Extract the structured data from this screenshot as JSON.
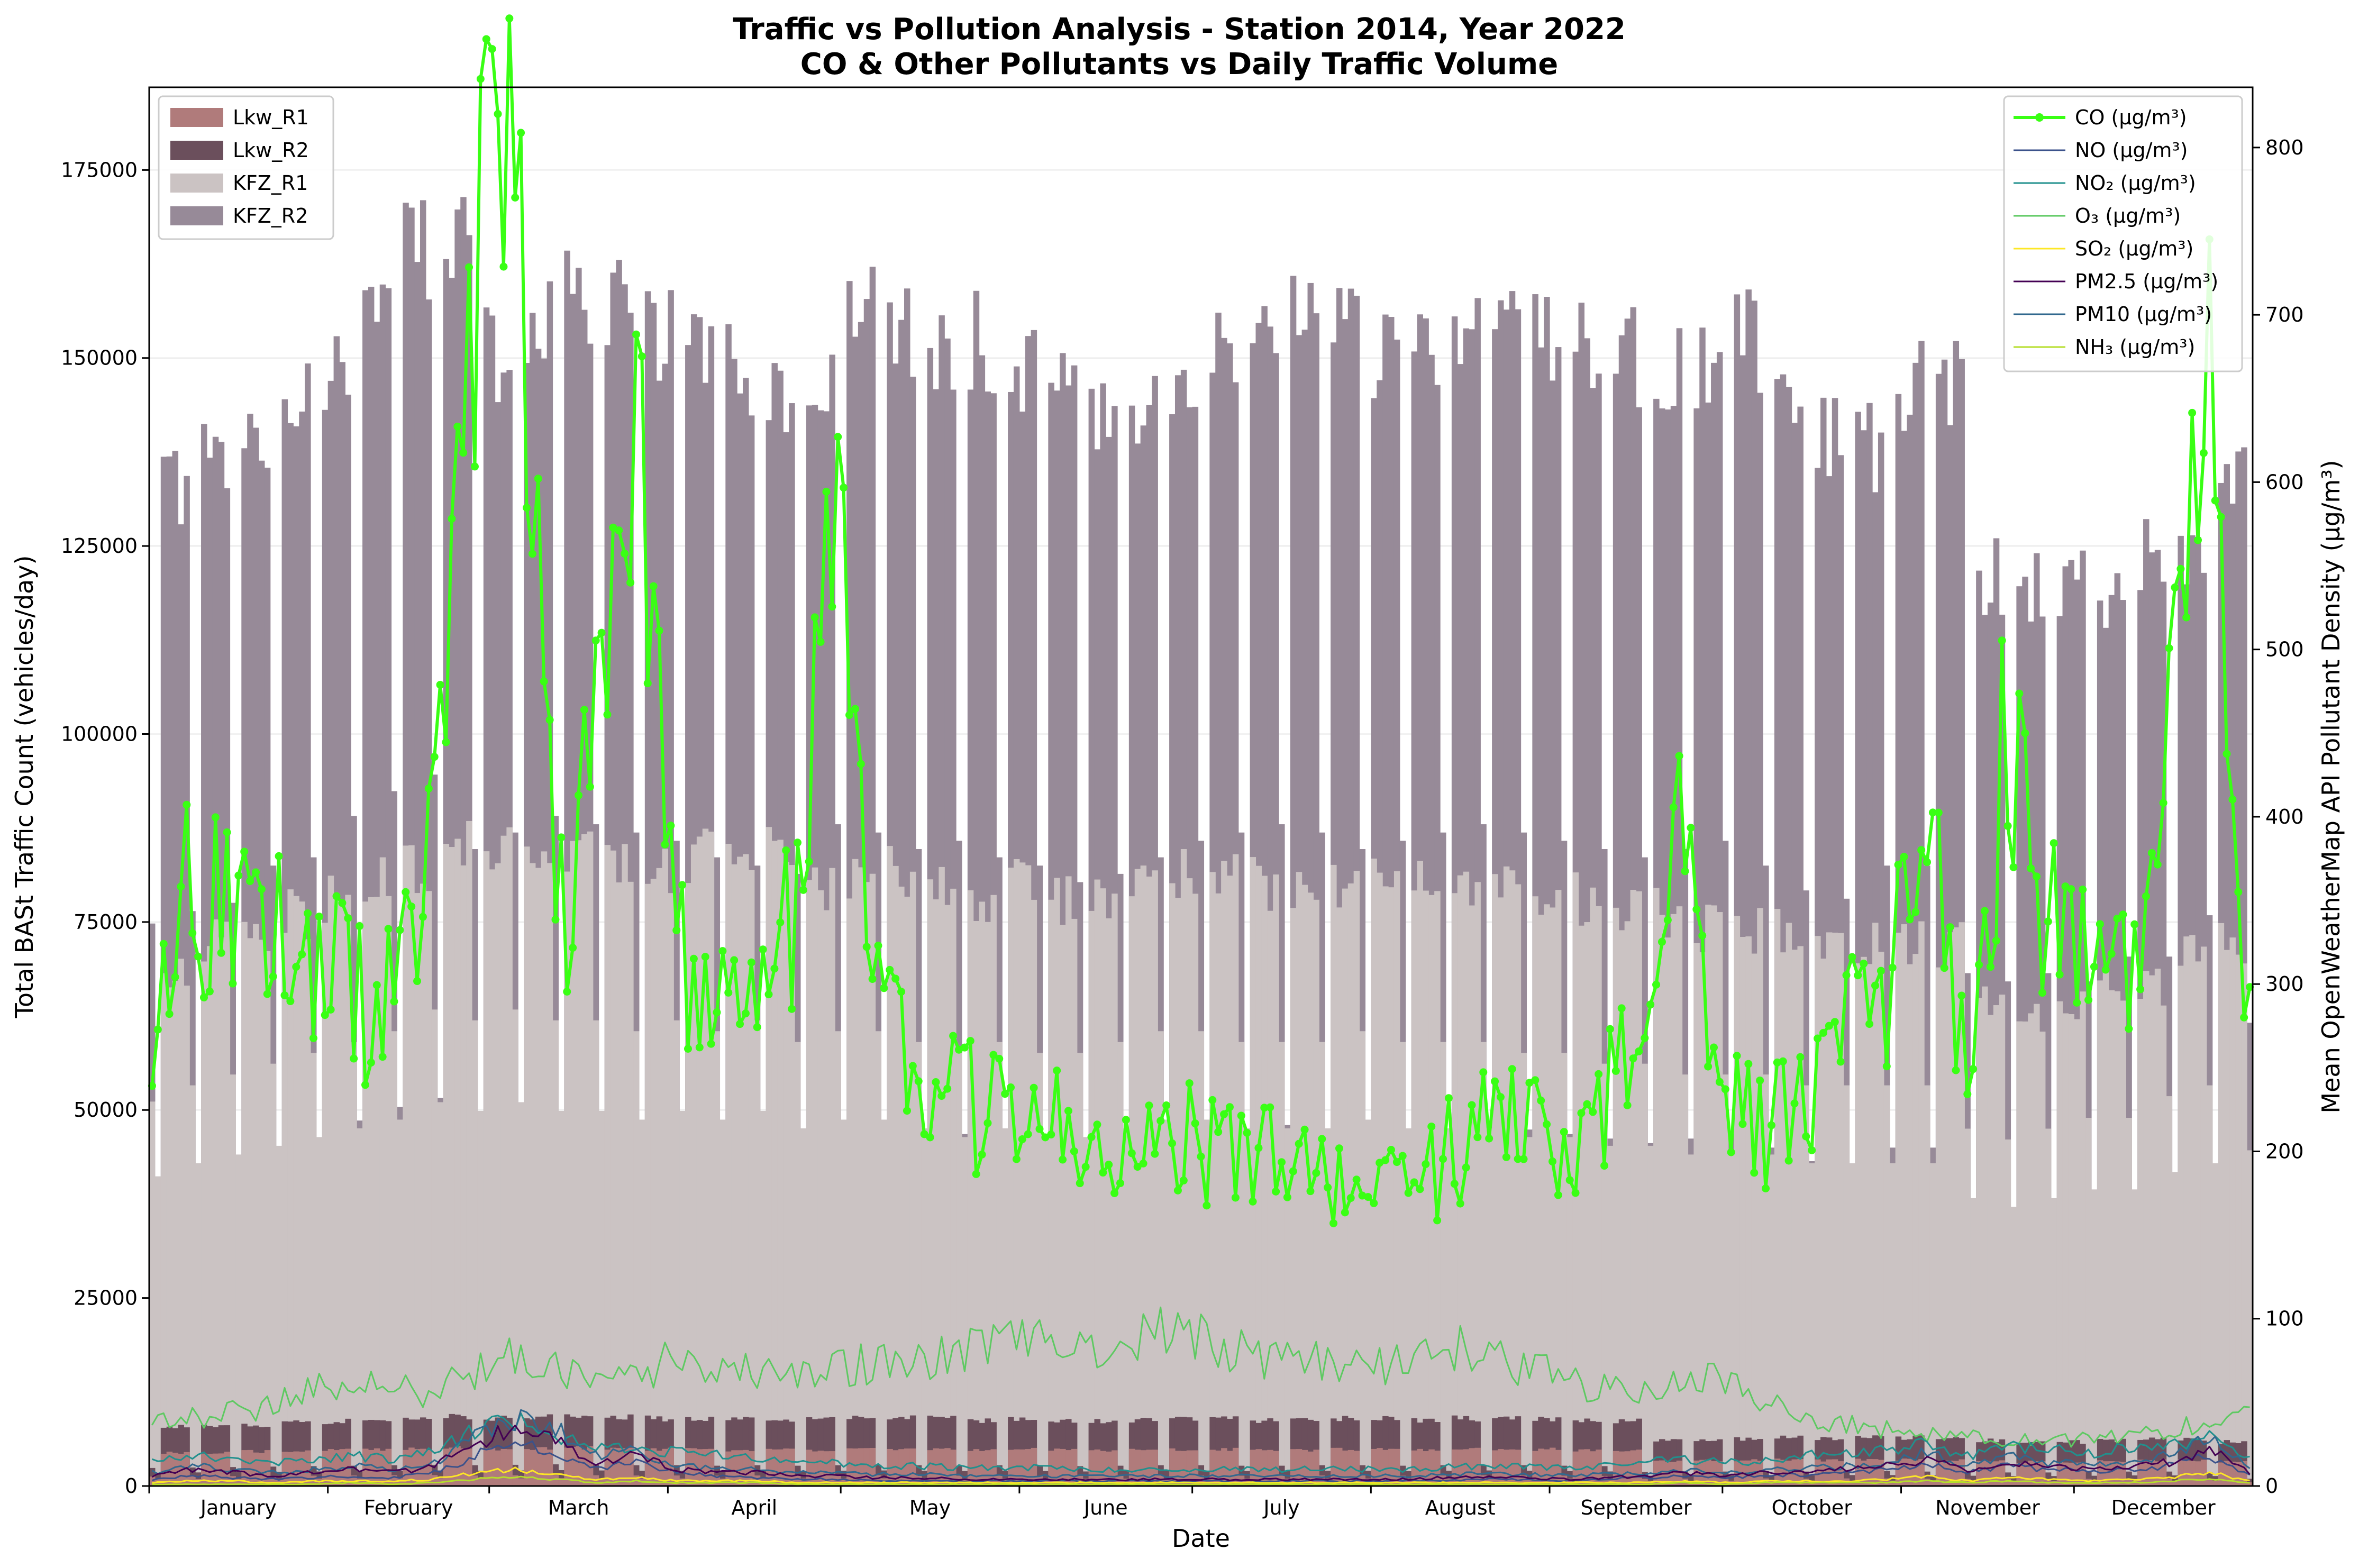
{
  "chart_data": {
    "type": "bar+line",
    "title": "Traffic vs Pollution Analysis - Station 2014, Year 2022",
    "subtitle": "CO & Other Pollutants vs Daily Traffic Volume",
    "xlabel": "Date",
    "ylabel_left": "Total BASt Traffic Count (vehicles/day)",
    "ylabel_right": "Mean OpenWeatherMap API Pollutant Density (μg/m³)",
    "ylim_left": [
      0,
      186000
    ],
    "ylim_right": [
      0,
      836
    ],
    "yticks_left": [
      "0",
      "25000",
      "50000",
      "75000",
      "100000",
      "125000",
      "150000",
      "175000"
    ],
    "yticks_right": [
      "0",
      "100",
      "200",
      "300",
      "400",
      "500",
      "600",
      "700",
      "800"
    ],
    "months": [
      "January",
      "February",
      "March",
      "April",
      "May",
      "June",
      "July",
      "August",
      "September",
      "October",
      "November",
      "December"
    ],
    "month_days": [
      31,
      28,
      31,
      30,
      31,
      30,
      31,
      31,
      30,
      31,
      30,
      31
    ],
    "grid": "horizontal",
    "legend_traffic_position": "top-left",
    "legend_pollutant_position": "top-right",
    "traffic_series": [
      {
        "name": "Lkw_R1",
        "color": "#b07b7b"
      },
      {
        "name": "Lkw_R2",
        "color": "#6b4f5c"
      },
      {
        "name": "KFZ_R1",
        "color": "#cbc3c3"
      },
      {
        "name": "KFZ_R2",
        "color": "#978a98"
      }
    ],
    "weekly_pattern_note": "",
    "traffic_weekly_means": {
      "KFZ_R2_weekday": [
        136000,
        139000,
        141000,
        150000,
        152000,
        162000,
        168000,
        172000,
        154000,
        158000,
        162000,
        160000,
        158000,
        156000,
        152000,
        150000,
        148000,
        160000,
        158000,
        154000,
        156000,
        152000,
        150000,
        146000,
        148000,
        152000,
        156000,
        158000,
        160000,
        158000,
        154000,
        156000,
        158000,
        160000,
        158000,
        156000,
        154000,
        152000,
        154000,
        156000,
        150000,
        144000,
        142000,
        150000,
        150000,
        124000,
        122000,
        124000,
        122000,
        128000,
        128000,
        138000,
        112000
      ],
      "KFZ_R1_weekday": [
        71000,
        74000,
        76000,
        78000,
        80000,
        82000,
        84000,
        88000,
        86000,
        88000,
        86000,
        86000,
        84000,
        86000,
        84000,
        86000,
        82000,
        84000,
        84000,
        82000,
        80000,
        82000,
        80000,
        80000,
        82000,
        84000,
        84000,
        82000,
        82000,
        82000,
        84000,
        82000,
        82000,
        82000,
        80000,
        80000,
        78000,
        78000,
        76000,
        76000,
        76000,
        74000,
        74000,
        74000,
        74000,
        66000,
        64000,
        66000,
        68000,
        68000,
        72000,
        74000,
        62000
      ],
      "Lkw_R2_weekday": [
        8000,
        8200,
        8400,
        8600,
        8800,
        9000,
        9200,
        9400,
        9200,
        9400,
        9600,
        9400,
        9200,
        9200,
        9000,
        9200,
        9000,
        9200,
        9400,
        9200,
        9000,
        9200,
        9000,
        8800,
        9000,
        9200,
        9200,
        9000,
        9000,
        9200,
        9200,
        9000,
        9200,
        9400,
        9200,
        9000,
        8800,
        6200,
        6400,
        6400,
        6600,
        6400,
        6600,
        6600,
        6400,
        6200,
        6000,
        6000,
        6200,
        6400,
        6400,
        6000,
        3200
      ],
      "Lkw_R1_weekday": [
        4500,
        4600,
        4700,
        4800,
        4900,
        5000,
        5100,
        5200,
        5000,
        5100,
        5200,
        5100,
        5000,
        5000,
        4900,
        5000,
        4900,
        5000,
        5100,
        5000,
        4900,
        5000,
        4900,
        4800,
        4900,
        5000,
        5000,
        4900,
        4900,
        5000,
        5000,
        4900,
        5000,
        5100,
        5000,
        4900,
        4800,
        3400,
        3500,
        3500,
        3600,
        3500,
        3600,
        3600,
        3500,
        3400,
        3300,
        3300,
        3400,
        3500,
        3500,
        3300,
        1800
      ]
    },
    "pollutants": [
      {
        "name": "CO (μg/m³)",
        "color": "#39ff14",
        "markers": true,
        "weekly_values": [
          270,
          360,
          330,
          330,
          320,
          290,
          290,
          380,
          720,
          800,
          330,
          430,
          680,
          330,
          270,
          300,
          340,
          580,
          310,
          250,
          230,
          220,
          230,
          220,
          210,
          205,
          205,
          200,
          190,
          180,
          165,
          180,
          195,
          210,
          220,
          205,
          230,
          270,
          390,
          230,
          210,
          240,
          270,
          290,
          430,
          240,
          460,
          340,
          300,
          300,
          470,
          660,
          260,
          235
        ]
      },
      {
        "name": "NO (μg/m³)",
        "color": "#3b528b",
        "markers": false,
        "weekly_values": [
          4,
          6,
          5,
          4,
          5,
          6,
          5,
          8,
          18,
          26,
          20,
          10,
          14,
          8,
          6,
          5,
          4,
          4,
          3,
          3,
          3,
          3,
          3,
          3,
          3,
          3,
          3,
          3,
          3,
          3,
          3,
          3,
          3,
          4,
          4,
          3,
          4,
          5,
          6,
          5,
          6,
          7,
          8,
          10,
          14,
          8,
          12,
          10,
          9,
          10,
          12,
          18,
          6,
          4
        ]
      },
      {
        "name": "NO₂ (μg/m³)",
        "color": "#21908d",
        "markers": false,
        "weekly_values": [
          14,
          18,
          16,
          14,
          16,
          18,
          16,
          20,
          34,
          40,
          30,
          22,
          24,
          20,
          18,
          16,
          14,
          14,
          12,
          12,
          11,
          11,
          11,
          10,
          10,
          10,
          10,
          10,
          10,
          10,
          10,
          10,
          11,
          12,
          12,
          11,
          12,
          14,
          16,
          14,
          16,
          18,
          20,
          22,
          26,
          18,
          24,
          22,
          20,
          22,
          24,
          30,
          16,
          14
        ]
      },
      {
        "name": "O₃ (μg/m³)",
        "color": "#5ec962",
        "markers": false,
        "weekly_values": [
          36,
          40,
          44,
          50,
          58,
          62,
          58,
          56,
          70,
          80,
          72,
          60,
          64,
          78,
          72,
          70,
          66,
          72,
          74,
          72,
          80,
          84,
          86,
          80,
          82,
          92,
          88,
          80,
          76,
          74,
          70,
          76,
          84,
          78,
          72,
          64,
          58,
          60,
          66,
          62,
          50,
          40,
          36,
          34,
          32,
          30,
          28,
          26,
          28,
          32,
          34,
          38,
          44,
          50
        ]
      },
      {
        "name": "SO₂ (μg/m³)",
        "color": "#fde725",
        "markers": false,
        "weekly_values": [
          2,
          3,
          3,
          2,
          3,
          3,
          3,
          4,
          8,
          10,
          7,
          4,
          5,
          3,
          3,
          3,
          2,
          2,
          2,
          2,
          2,
          2,
          2,
          2,
          2,
          2,
          2,
          2,
          2,
          2,
          2,
          2,
          2,
          2,
          2,
          2,
          2,
          2,
          3,
          2,
          3,
          3,
          3,
          4,
          6,
          3,
          5,
          4,
          3,
          4,
          5,
          8,
          3,
          2
        ]
      },
      {
        "name": "PM2.5 (μg/m³)",
        "color": "#440154",
        "markers": false,
        "weekly_values": [
          6,
          10,
          8,
          6,
          8,
          10,
          8,
          12,
          26,
          34,
          28,
          14,
          18,
          10,
          8,
          8,
          6,
          6,
          5,
          5,
          4,
          4,
          4,
          4,
          4,
          4,
          4,
          4,
          4,
          4,
          4,
          4,
          5,
          5,
          5,
          4,
          5,
          6,
          8,
          6,
          8,
          9,
          10,
          12,
          16,
          10,
          14,
          12,
          11,
          12,
          14,
          22,
          8,
          6
        ]
      },
      {
        "name": "PM10 (μg/m³)",
        "color": "#31688e",
        "markers": false,
        "weekly_values": [
          8,
          12,
          10,
          8,
          10,
          12,
          10,
          14,
          30,
          40,
          34,
          18,
          22,
          12,
          10,
          10,
          8,
          8,
          7,
          7,
          6,
          6,
          6,
          6,
          6,
          6,
          6,
          6,
          6,
          6,
          6,
          6,
          7,
          7,
          7,
          6,
          7,
          8,
          10,
          8,
          10,
          11,
          12,
          14,
          20,
          12,
          18,
          14,
          13,
          14,
          18,
          28,
          10,
          8
        ]
      },
      {
        "name": "NH₃ (μg/m³)",
        "color": "#b5de2b",
        "markers": false,
        "weekly_values": [
          1,
          1,
          1,
          1,
          1,
          2,
          1,
          2,
          4,
          5,
          4,
          2,
          3,
          2,
          2,
          2,
          1,
          1,
          1,
          1,
          1,
          1,
          1,
          1,
          1,
          1,
          1,
          1,
          1,
          1,
          1,
          1,
          1,
          1,
          1,
          1,
          1,
          1,
          2,
          1,
          2,
          2,
          2,
          2,
          3,
          2,
          3,
          2,
          2,
          2,
          3,
          4,
          2,
          1
        ]
      }
    ]
  }
}
